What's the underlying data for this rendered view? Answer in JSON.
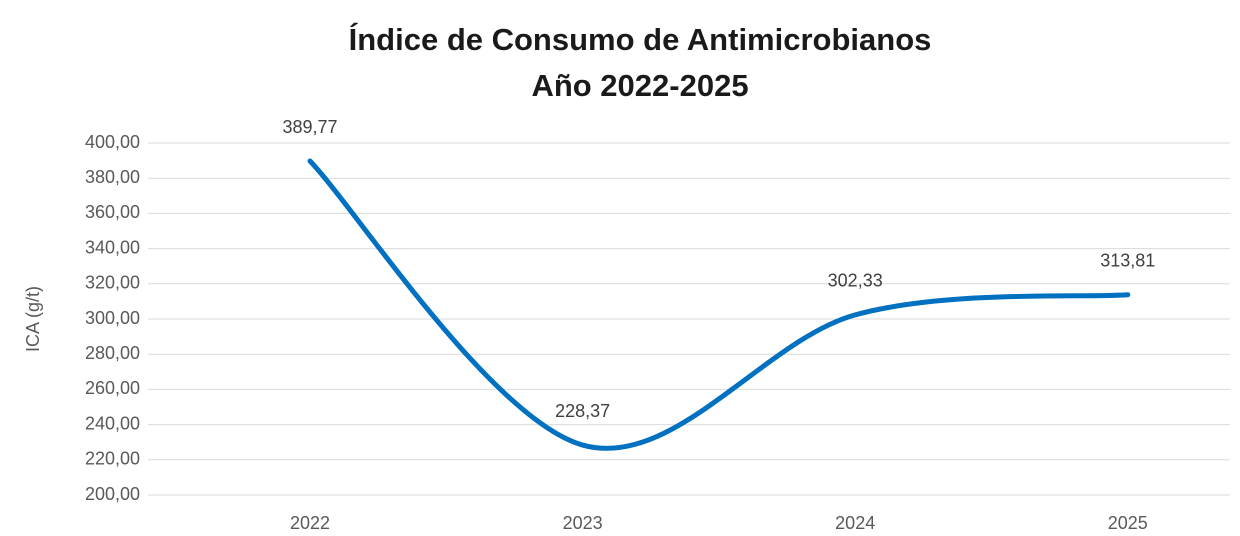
{
  "chart_data": {
    "type": "line",
    "title": [
      "Índice de Consumo de Antimicrobianos",
      "Año 2022-2025"
    ],
    "y_label": "ICA (g/t)",
    "categories": [
      "2022",
      "2023",
      "2024",
      "2025"
    ],
    "values": [
      389.77,
      228.37,
      302.33,
      313.81
    ],
    "value_labels": [
      "389,77",
      "228,37",
      "302,33",
      "313,81"
    ],
    "color": "#0070c0",
    "smooth": true,
    "ylim": [
      200,
      400
    ],
    "yticks": [
      {
        "value": 200,
        "label": "200,00"
      },
      {
        "value": 220,
        "label": "220,00"
      },
      {
        "value": 240,
        "label": "240,00"
      },
      {
        "value": 260,
        "label": "260,00"
      },
      {
        "value": 280,
        "label": "280,00"
      },
      {
        "value": 300,
        "label": "300,00"
      },
      {
        "value": 320,
        "label": "320,00"
      },
      {
        "value": 340,
        "label": "340,00"
      },
      {
        "value": 360,
        "label": "360,00"
      },
      {
        "value": 380,
        "label": "380,00"
      },
      {
        "value": 400,
        "label": "400,00"
      }
    ],
    "grid": true
  }
}
